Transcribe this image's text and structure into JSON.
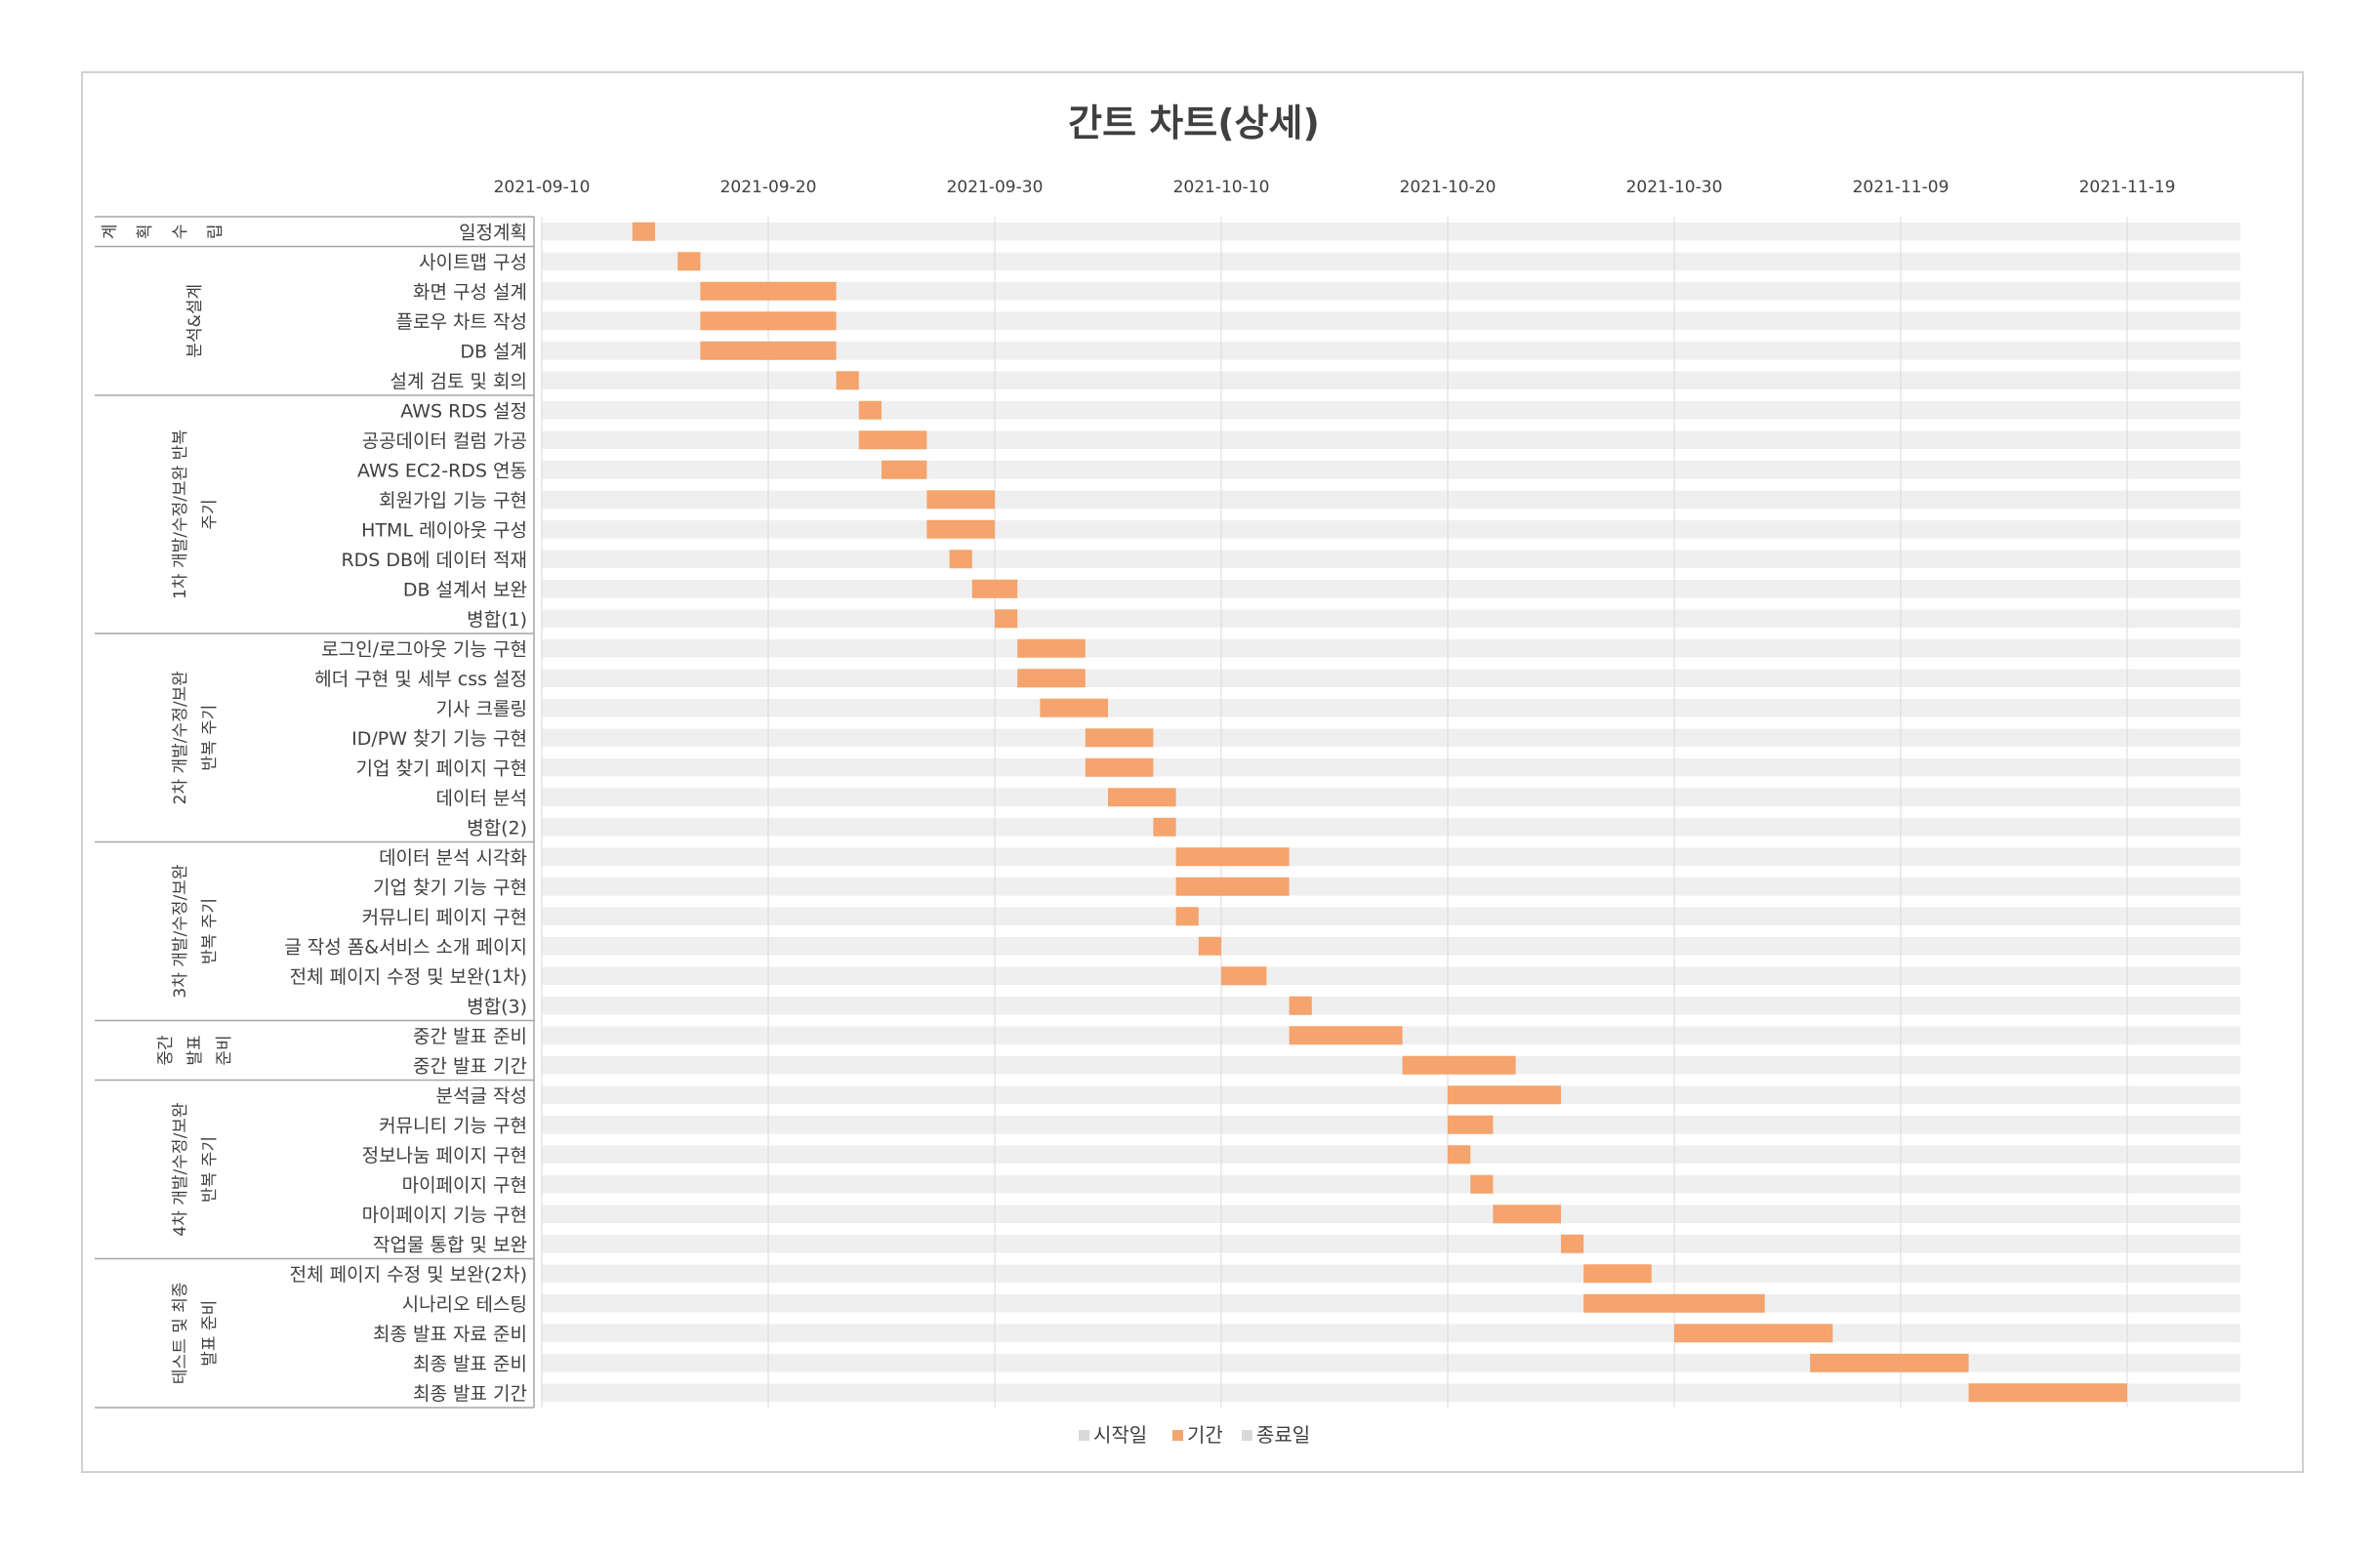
{
  "chart_data": {
    "type": "bar",
    "subtype": "gantt",
    "title": "간트 차트(상세)",
    "x_axis": {
      "type": "date",
      "min": "2021-09-10",
      "max": "2021-11-24",
      "ticks": [
        "2021-09-10",
        "2021-09-20",
        "2021-09-30",
        "2021-10-10",
        "2021-10-20",
        "2021-10-30",
        "2021-11-09",
        "2021-11-19"
      ]
    },
    "grid": true,
    "legend": {
      "position": "bottom",
      "entries": [
        "시작일",
        "기간",
        "종료일"
      ]
    },
    "colors": {
      "bar": "#F4A46C",
      "row_band": "#EFEFEF",
      "grid": "#D9D9D9",
      "legend_muted": "#D9D9D9"
    },
    "groups": [
      {
        "name": "계회수립",
        "style": "letters",
        "lines": [
          "계",
          "획",
          "수",
          "립"
        ],
        "tasks": [
          {
            "name": "일정계획",
            "start": "2021-09-14",
            "end": "2021-09-15"
          }
        ]
      },
      {
        "name": "분석&설계",
        "lines": [
          "분석&설계"
        ],
        "tasks": [
          {
            "name": "사이트맵 구성",
            "start": "2021-09-16",
            "end": "2021-09-17"
          },
          {
            "name": "화면 구성 설계",
            "start": "2021-09-17",
            "end": "2021-09-23"
          },
          {
            "name": "플로우 차트 작성",
            "start": "2021-09-17",
            "end": "2021-09-23"
          },
          {
            "name": "DB 설계",
            "start": "2021-09-17",
            "end": "2021-09-23"
          },
          {
            "name": "설계 검토 및 회의",
            "start": "2021-09-23",
            "end": "2021-09-24"
          }
        ]
      },
      {
        "name": "1차 개발/수정/보완 반복 주기",
        "lines": [
          "1차 개발/수정/보완 반복",
          "주기"
        ],
        "tasks": [
          {
            "name": "AWS RDS 설정",
            "start": "2021-09-24",
            "end": "2021-09-25"
          },
          {
            "name": "공공데이터 컬럼 가공",
            "start": "2021-09-24",
            "end": "2021-09-27"
          },
          {
            "name": "AWS EC2-RDS 연동",
            "start": "2021-09-25",
            "end": "2021-09-27"
          },
          {
            "name": "회원가입 기능 구현",
            "start": "2021-09-27",
            "end": "2021-09-30"
          },
          {
            "name": "HTML 레이아웃 구성",
            "start": "2021-09-27",
            "end": "2021-09-30"
          },
          {
            "name": "RDS DB에 데이터 적재",
            "start": "2021-09-28",
            "end": "2021-09-29"
          },
          {
            "name": "DB 설계서 보완",
            "start": "2021-09-29",
            "end": "2021-10-01"
          },
          {
            "name": "병합(1)",
            "start": "2021-09-30",
            "end": "2021-10-01"
          }
        ]
      },
      {
        "name": "2차 개발/수정/보완 반복 주기",
        "lines": [
          "2차 개발/수정/보완",
          "반복 주기"
        ],
        "tasks": [
          {
            "name": "로그인/로그아웃 기능 구현",
            "start": "2021-10-01",
            "end": "2021-10-04"
          },
          {
            "name": "헤더 구현 및 세부 css 설정",
            "start": "2021-10-01",
            "end": "2021-10-04"
          },
          {
            "name": "기사 크롤링",
            "start": "2021-10-02",
            "end": "2021-10-05"
          },
          {
            "name": "ID/PW 찾기 기능 구현",
            "start": "2021-10-04",
            "end": "2021-10-07"
          },
          {
            "name": "기업 찾기 페이지 구현",
            "start": "2021-10-04",
            "end": "2021-10-07"
          },
          {
            "name": "데이터 분석",
            "start": "2021-10-05",
            "end": "2021-10-08"
          },
          {
            "name": "병합(2)",
            "start": "2021-10-07",
            "end": "2021-10-08"
          }
        ]
      },
      {
        "name": "3차 개발/수정/보완 반복 주기",
        "lines": [
          "3차 개발/수정/보완",
          "반복 주기"
        ],
        "tasks": [
          {
            "name": "데이터 분석 시각화",
            "start": "2021-10-08",
            "end": "2021-10-13"
          },
          {
            "name": "기업 찾기 기능 구현",
            "start": "2021-10-08",
            "end": "2021-10-13"
          },
          {
            "name": "커뮤니티 페이지 구현",
            "start": "2021-10-08",
            "end": "2021-10-09"
          },
          {
            "name": "글 작성 폼&서비스 소개 페이지",
            "start": "2021-10-09",
            "end": "2021-10-10"
          },
          {
            "name": "전체 페이지 수정 및 보완(1차)",
            "start": "2021-10-10",
            "end": "2021-10-12"
          },
          {
            "name": "병합(3)",
            "start": "2021-10-13",
            "end": "2021-10-14"
          }
        ]
      },
      {
        "name": "중간 발표 준비",
        "lines": [
          "중간",
          "발표",
          "준비"
        ],
        "tasks": [
          {
            "name": "중간 발표 준비",
            "start": "2021-10-13",
            "end": "2021-10-18"
          },
          {
            "name": "중간 발표 기간",
            "start": "2021-10-18",
            "end": "2021-10-23"
          }
        ]
      },
      {
        "name": "4차 개발/수정/보완 반복 주기",
        "lines": [
          "4차 개발/수정/보완",
          "반복 주기"
        ],
        "tasks": [
          {
            "name": "분석글 작성",
            "start": "2021-10-20",
            "end": "2021-10-25"
          },
          {
            "name": "커뮤니티 기능 구현",
            "start": "2021-10-20",
            "end": "2021-10-22"
          },
          {
            "name": "정보나눔 페이지 구현",
            "start": "2021-10-20",
            "end": "2021-10-21"
          },
          {
            "name": "마이페이지 구현",
            "start": "2021-10-21",
            "end": "2021-10-22"
          },
          {
            "name": "마이페이지 기능 구현",
            "start": "2021-10-22",
            "end": "2021-10-25"
          },
          {
            "name": "작업물 통합 및 보완",
            "start": "2021-10-25",
            "end": "2021-10-26"
          }
        ]
      },
      {
        "name": "테스트 및 최종 발표 준비",
        "lines": [
          "테스트 및 최종",
          "발표 준비"
        ],
        "tasks": [
          {
            "name": "전체 페이지 수정 및 보완(2차)",
            "start": "2021-10-26",
            "end": "2021-10-29"
          },
          {
            "name": "시나리오 테스팅",
            "start": "2021-10-26",
            "end": "2021-11-03"
          },
          {
            "name": "최종 발표 자료 준비",
            "start": "2021-10-30",
            "end": "2021-11-06"
          },
          {
            "name": "최종 발표 준비",
            "start": "2021-11-05",
            "end": "2021-11-12"
          },
          {
            "name": "최종 발표 기간",
            "start": "2021-11-12",
            "end": "2021-11-19"
          }
        ]
      }
    ]
  }
}
